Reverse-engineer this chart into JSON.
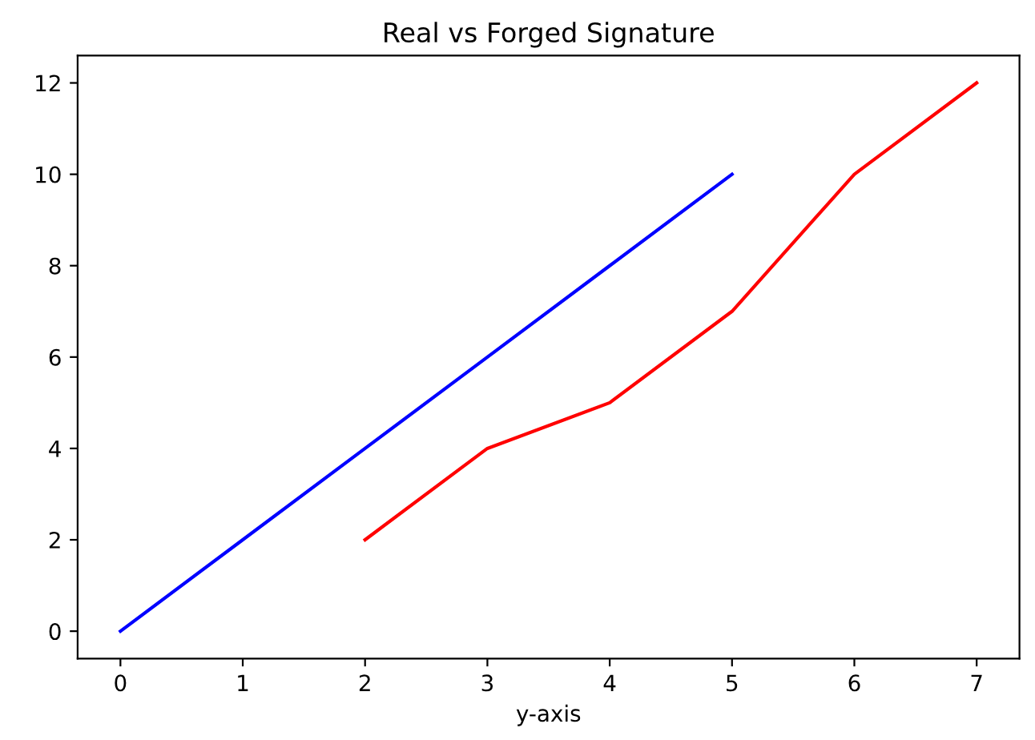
{
  "chart_data": {
    "type": "line",
    "title": "Real vs Forged Signature",
    "xlabel": "y-axis",
    "series": [
      {
        "color": "#0000ff",
        "x": [
          0,
          1,
          2,
          3,
          4,
          5
        ],
        "values": [
          0,
          2,
          4,
          6,
          8,
          10
        ]
      },
      {
        "color": "#ff0000",
        "x": [
          2,
          3,
          4,
          5,
          6,
          7
        ],
        "values": [
          2,
          4,
          5,
          7,
          10,
          12
        ]
      }
    ],
    "xlim": [
      -0.35,
      7.35
    ],
    "ylim": [
      -0.6,
      12.6
    ],
    "xticks": [
      0,
      1,
      2,
      3,
      4,
      5,
      6,
      7
    ],
    "yticks": [
      0,
      2,
      4,
      6,
      8,
      10,
      12
    ],
    "grid": false
  }
}
